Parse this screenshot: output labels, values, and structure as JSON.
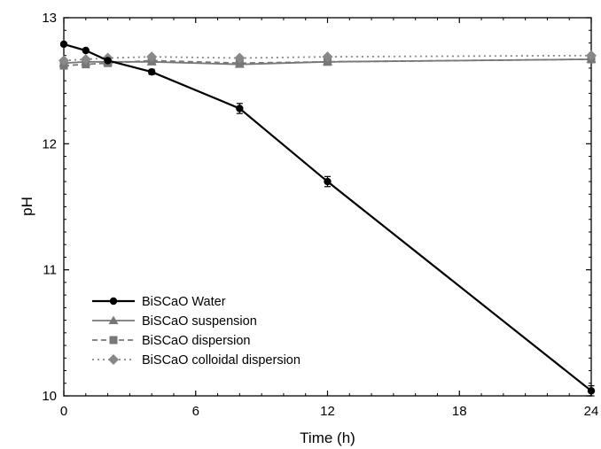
{
  "chart_data": {
    "type": "line",
    "xlabel": "Time (h)",
    "ylabel": "pH",
    "xlim": [
      0,
      24
    ],
    "ylim": [
      10,
      13
    ],
    "x_ticks": [
      0,
      6,
      12,
      18,
      24
    ],
    "y_ticks": [
      10,
      11,
      12,
      13
    ],
    "legend_position": "bottom-left",
    "grid": false,
    "series": [
      {
        "name": "BiSCaO Water",
        "color": "#000000",
        "line": "solid",
        "marker": "circle",
        "x": [
          0,
          1,
          2,
          4,
          8,
          12,
          24
        ],
        "y": [
          12.79,
          12.74,
          12.66,
          12.57,
          12.28,
          11.7,
          10.04
        ],
        "err": [
          0.01,
          0.01,
          0.01,
          0.02,
          0.04,
          0.04,
          0.04
        ]
      },
      {
        "name": "BiSCaO suspension",
        "color": "#777777",
        "line": "solid",
        "marker": "triangle",
        "x": [
          0,
          1,
          2,
          4,
          8,
          12,
          24
        ],
        "y": [
          12.64,
          12.65,
          12.65,
          12.65,
          12.63,
          12.65,
          12.67
        ],
        "err": [
          0,
          0,
          0,
          0,
          0,
          0,
          0
        ]
      },
      {
        "name": "BiSCaO dispersion",
        "color": "#777777",
        "line": "dashed",
        "marker": "square",
        "x": [
          0,
          1,
          2,
          4,
          8,
          12,
          24
        ],
        "y": [
          12.62,
          12.63,
          12.64,
          12.66,
          12.64,
          12.65,
          12.67
        ],
        "err": [
          0,
          0,
          0,
          0,
          0,
          0,
          0
        ]
      },
      {
        "name": "BiSCaO colloidal dispersion",
        "color": "#888888",
        "line": "dotted",
        "marker": "diamond",
        "x": [
          0,
          1,
          2,
          4,
          8,
          12,
          24
        ],
        "y": [
          12.66,
          12.67,
          12.68,
          12.69,
          12.68,
          12.69,
          12.7
        ],
        "err": [
          0,
          0,
          0,
          0,
          0,
          0,
          0
        ]
      }
    ]
  }
}
